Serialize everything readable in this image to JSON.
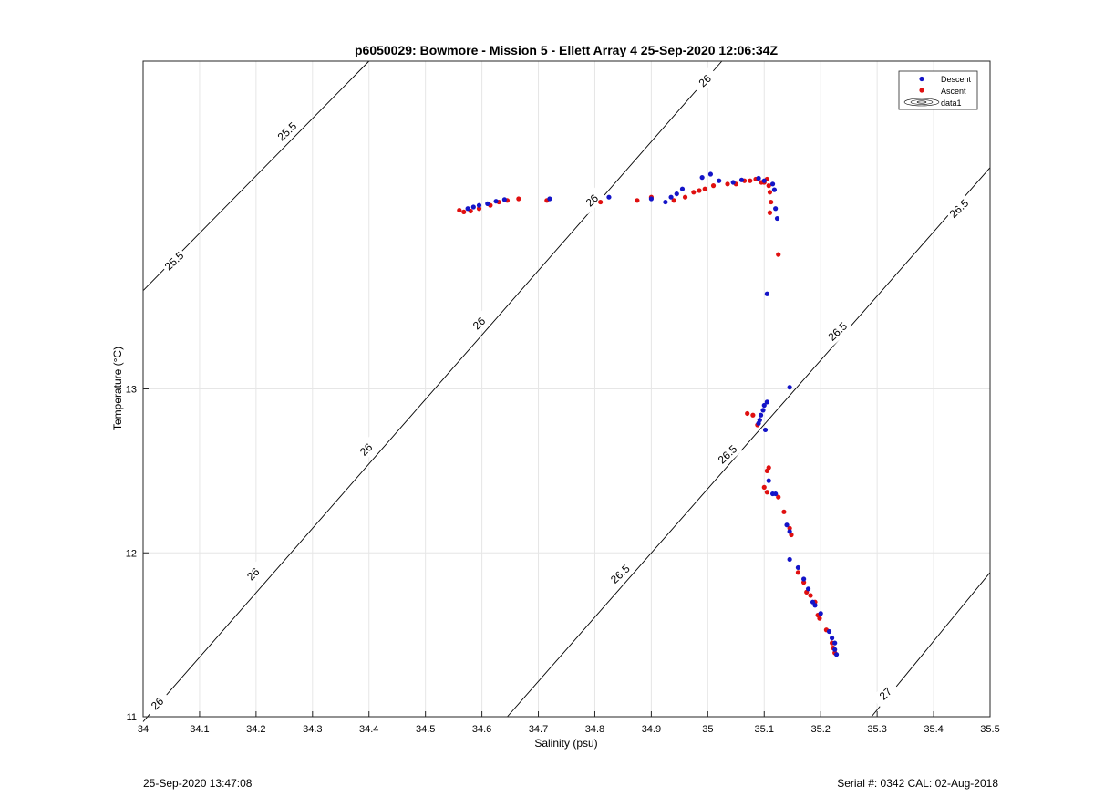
{
  "chart_data": {
    "type": "scatter",
    "title": "p6050029: Bowmore - Mission 5 - Ellett Array 4 25-Sep-2020 12:06:34Z",
    "xlabel": "Salinity (psu)",
    "ylabel": "Temperature (°C)",
    "xlim": [
      34,
      35.5
    ],
    "ylim": [
      11,
      15
    ],
    "x_ticks": [
      "34",
      "34.1",
      "34.2",
      "34.3",
      "34.4",
      "34.5",
      "34.6",
      "34.7",
      "34.8",
      "34.9",
      "35",
      "35.1",
      "35.2",
      "35.3",
      "35.4",
      "35.5"
    ],
    "y_ticks": [
      "11",
      "12",
      "13"
    ],
    "grid": true,
    "legend_position": "top-right",
    "legend": [
      "Descent",
      "Ascent",
      "data1"
    ],
    "colors": {
      "descent": "#1414c8",
      "ascent": "#e01010",
      "contour": "#000000",
      "grid": "#e6e6e6"
    },
    "contour_labels": [
      {
        "text": "25.5",
        "at": [
          34.255,
          14.57
        ],
        "angle": -43
      },
      {
        "text": "25.5",
        "at": [
          34.055,
          13.78
        ],
        "angle": -43
      },
      {
        "text": "26",
        "at": [
          34.995,
          14.88
        ],
        "angle": -43
      },
      {
        "text": "26",
        "at": [
          34.795,
          14.15
        ],
        "angle": -43
      },
      {
        "text": "26",
        "at": [
          34.595,
          13.4
        ],
        "angle": -43
      },
      {
        "text": "26",
        "at": [
          34.395,
          12.63
        ],
        "angle": -43
      },
      {
        "text": "26",
        "at": [
          34.195,
          11.87
        ],
        "angle": -43
      },
      {
        "text": "26",
        "at": [
          34.025,
          11.08
        ],
        "angle": -43
      },
      {
        "text": "26.5",
        "at": [
          35.445,
          14.1
        ],
        "angle": -43
      },
      {
        "text": "26.5",
        "at": [
          35.23,
          13.35
        ],
        "angle": -43
      },
      {
        "text": "26.5",
        "at": [
          35.035,
          12.6
        ],
        "angle": -43
      },
      {
        "text": "26.5",
        "at": [
          34.845,
          11.87
        ],
        "angle": -43
      },
      {
        "text": "27",
        "at": [
          35.315,
          11.14
        ],
        "angle": -43
      }
    ],
    "contours": [
      {
        "value": 25.5,
        "points": [
          [
            34.0,
            13.6
          ],
          [
            34.4,
            15.0
          ]
        ]
      },
      {
        "value": 26,
        "points": [
          [
            34.0,
            10.97
          ],
          [
            35.025,
            15.0
          ]
        ]
      },
      {
        "value": 26.5,
        "points": [
          [
            34.645,
            11.0
          ],
          [
            35.5,
            14.35
          ]
        ]
      },
      {
        "value": 27,
        "points": [
          [
            35.29,
            11.0
          ],
          [
            35.5,
            11.88
          ]
        ]
      }
    ],
    "series": [
      {
        "name": "Descent",
        "points": [
          [
            34.575,
            14.1
          ],
          [
            34.585,
            14.11
          ],
          [
            34.595,
            14.12
          ],
          [
            34.61,
            14.13
          ],
          [
            34.625,
            14.145
          ],
          [
            34.64,
            14.155
          ],
          [
            34.72,
            14.16
          ],
          [
            34.825,
            14.17
          ],
          [
            34.9,
            14.16
          ],
          [
            34.925,
            14.14
          ],
          [
            34.935,
            14.17
          ],
          [
            34.945,
            14.19
          ],
          [
            34.955,
            14.22
          ],
          [
            34.99,
            14.29
          ],
          [
            35.005,
            14.31
          ],
          [
            35.02,
            14.27
          ],
          [
            35.045,
            14.26
          ],
          [
            35.06,
            14.275
          ],
          [
            35.09,
            14.285
          ],
          [
            35.1,
            14.27
          ],
          [
            35.115,
            14.25
          ],
          [
            35.118,
            14.215
          ],
          [
            35.12,
            14.1
          ],
          [
            35.123,
            14.04
          ],
          [
            35.105,
            13.58
          ],
          [
            35.145,
            13.01
          ],
          [
            35.105,
            12.92
          ],
          [
            35.1,
            12.9
          ],
          [
            35.098,
            12.87
          ],
          [
            35.094,
            12.84
          ],
          [
            35.092,
            12.81
          ],
          [
            35.09,
            12.79
          ],
          [
            35.102,
            12.75
          ],
          [
            35.108,
            12.44
          ],
          [
            35.115,
            12.36
          ],
          [
            35.12,
            12.36
          ],
          [
            35.14,
            12.17
          ],
          [
            35.145,
            12.13
          ],
          [
            35.145,
            11.96
          ],
          [
            35.16,
            11.91
          ],
          [
            35.17,
            11.84
          ],
          [
            35.178,
            11.78
          ],
          [
            35.186,
            11.7
          ],
          [
            35.19,
            11.68
          ],
          [
            35.2,
            11.63
          ],
          [
            35.215,
            11.52
          ],
          [
            35.22,
            11.48
          ],
          [
            35.225,
            11.45
          ],
          [
            35.225,
            11.41
          ],
          [
            35.228,
            11.38
          ]
        ]
      },
      {
        "name": "Ascent",
        "points": [
          [
            34.56,
            14.09
          ],
          [
            34.568,
            14.08
          ],
          [
            34.58,
            14.085
          ],
          [
            34.595,
            14.1
          ],
          [
            34.615,
            14.12
          ],
          [
            34.63,
            14.14
          ],
          [
            34.645,
            14.15
          ],
          [
            34.665,
            14.16
          ],
          [
            34.715,
            14.15
          ],
          [
            34.81,
            14.14
          ],
          [
            34.875,
            14.15
          ],
          [
            34.9,
            14.17
          ],
          [
            34.94,
            14.15
          ],
          [
            34.96,
            14.17
          ],
          [
            34.975,
            14.2
          ],
          [
            34.985,
            14.21
          ],
          [
            34.995,
            14.22
          ],
          [
            35.01,
            14.24
          ],
          [
            35.035,
            14.25
          ],
          [
            35.05,
            14.25
          ],
          [
            35.065,
            14.27
          ],
          [
            35.075,
            14.27
          ],
          [
            35.085,
            14.28
          ],
          [
            35.095,
            14.26
          ],
          [
            35.1,
            14.26
          ],
          [
            35.105,
            14.28
          ],
          [
            35.108,
            14.24
          ],
          [
            35.11,
            14.2
          ],
          [
            35.112,
            14.14
          ],
          [
            35.11,
            14.075
          ],
          [
            35.125,
            13.82
          ],
          [
            35.07,
            12.85
          ],
          [
            35.08,
            12.84
          ],
          [
            35.088,
            12.78
          ],
          [
            35.108,
            12.52
          ],
          [
            35.105,
            12.5
          ],
          [
            35.1,
            12.4
          ],
          [
            35.105,
            12.37
          ],
          [
            35.125,
            12.34
          ],
          [
            35.135,
            12.25
          ],
          [
            35.145,
            12.15
          ],
          [
            35.148,
            12.11
          ],
          [
            35.16,
            11.88
          ],
          [
            35.17,
            11.82
          ],
          [
            35.175,
            11.76
          ],
          [
            35.182,
            11.74
          ],
          [
            35.19,
            11.7
          ],
          [
            35.195,
            11.62
          ],
          [
            35.198,
            11.6
          ],
          [
            35.21,
            11.53
          ],
          [
            35.22,
            11.45
          ],
          [
            35.222,
            11.42
          ],
          [
            35.225,
            11.39
          ]
        ]
      }
    ]
  },
  "footer": {
    "timestamp": "25-Sep-2020 13:47:08",
    "serial": "Serial #: 0342  CAL: 02-Aug-2018"
  }
}
